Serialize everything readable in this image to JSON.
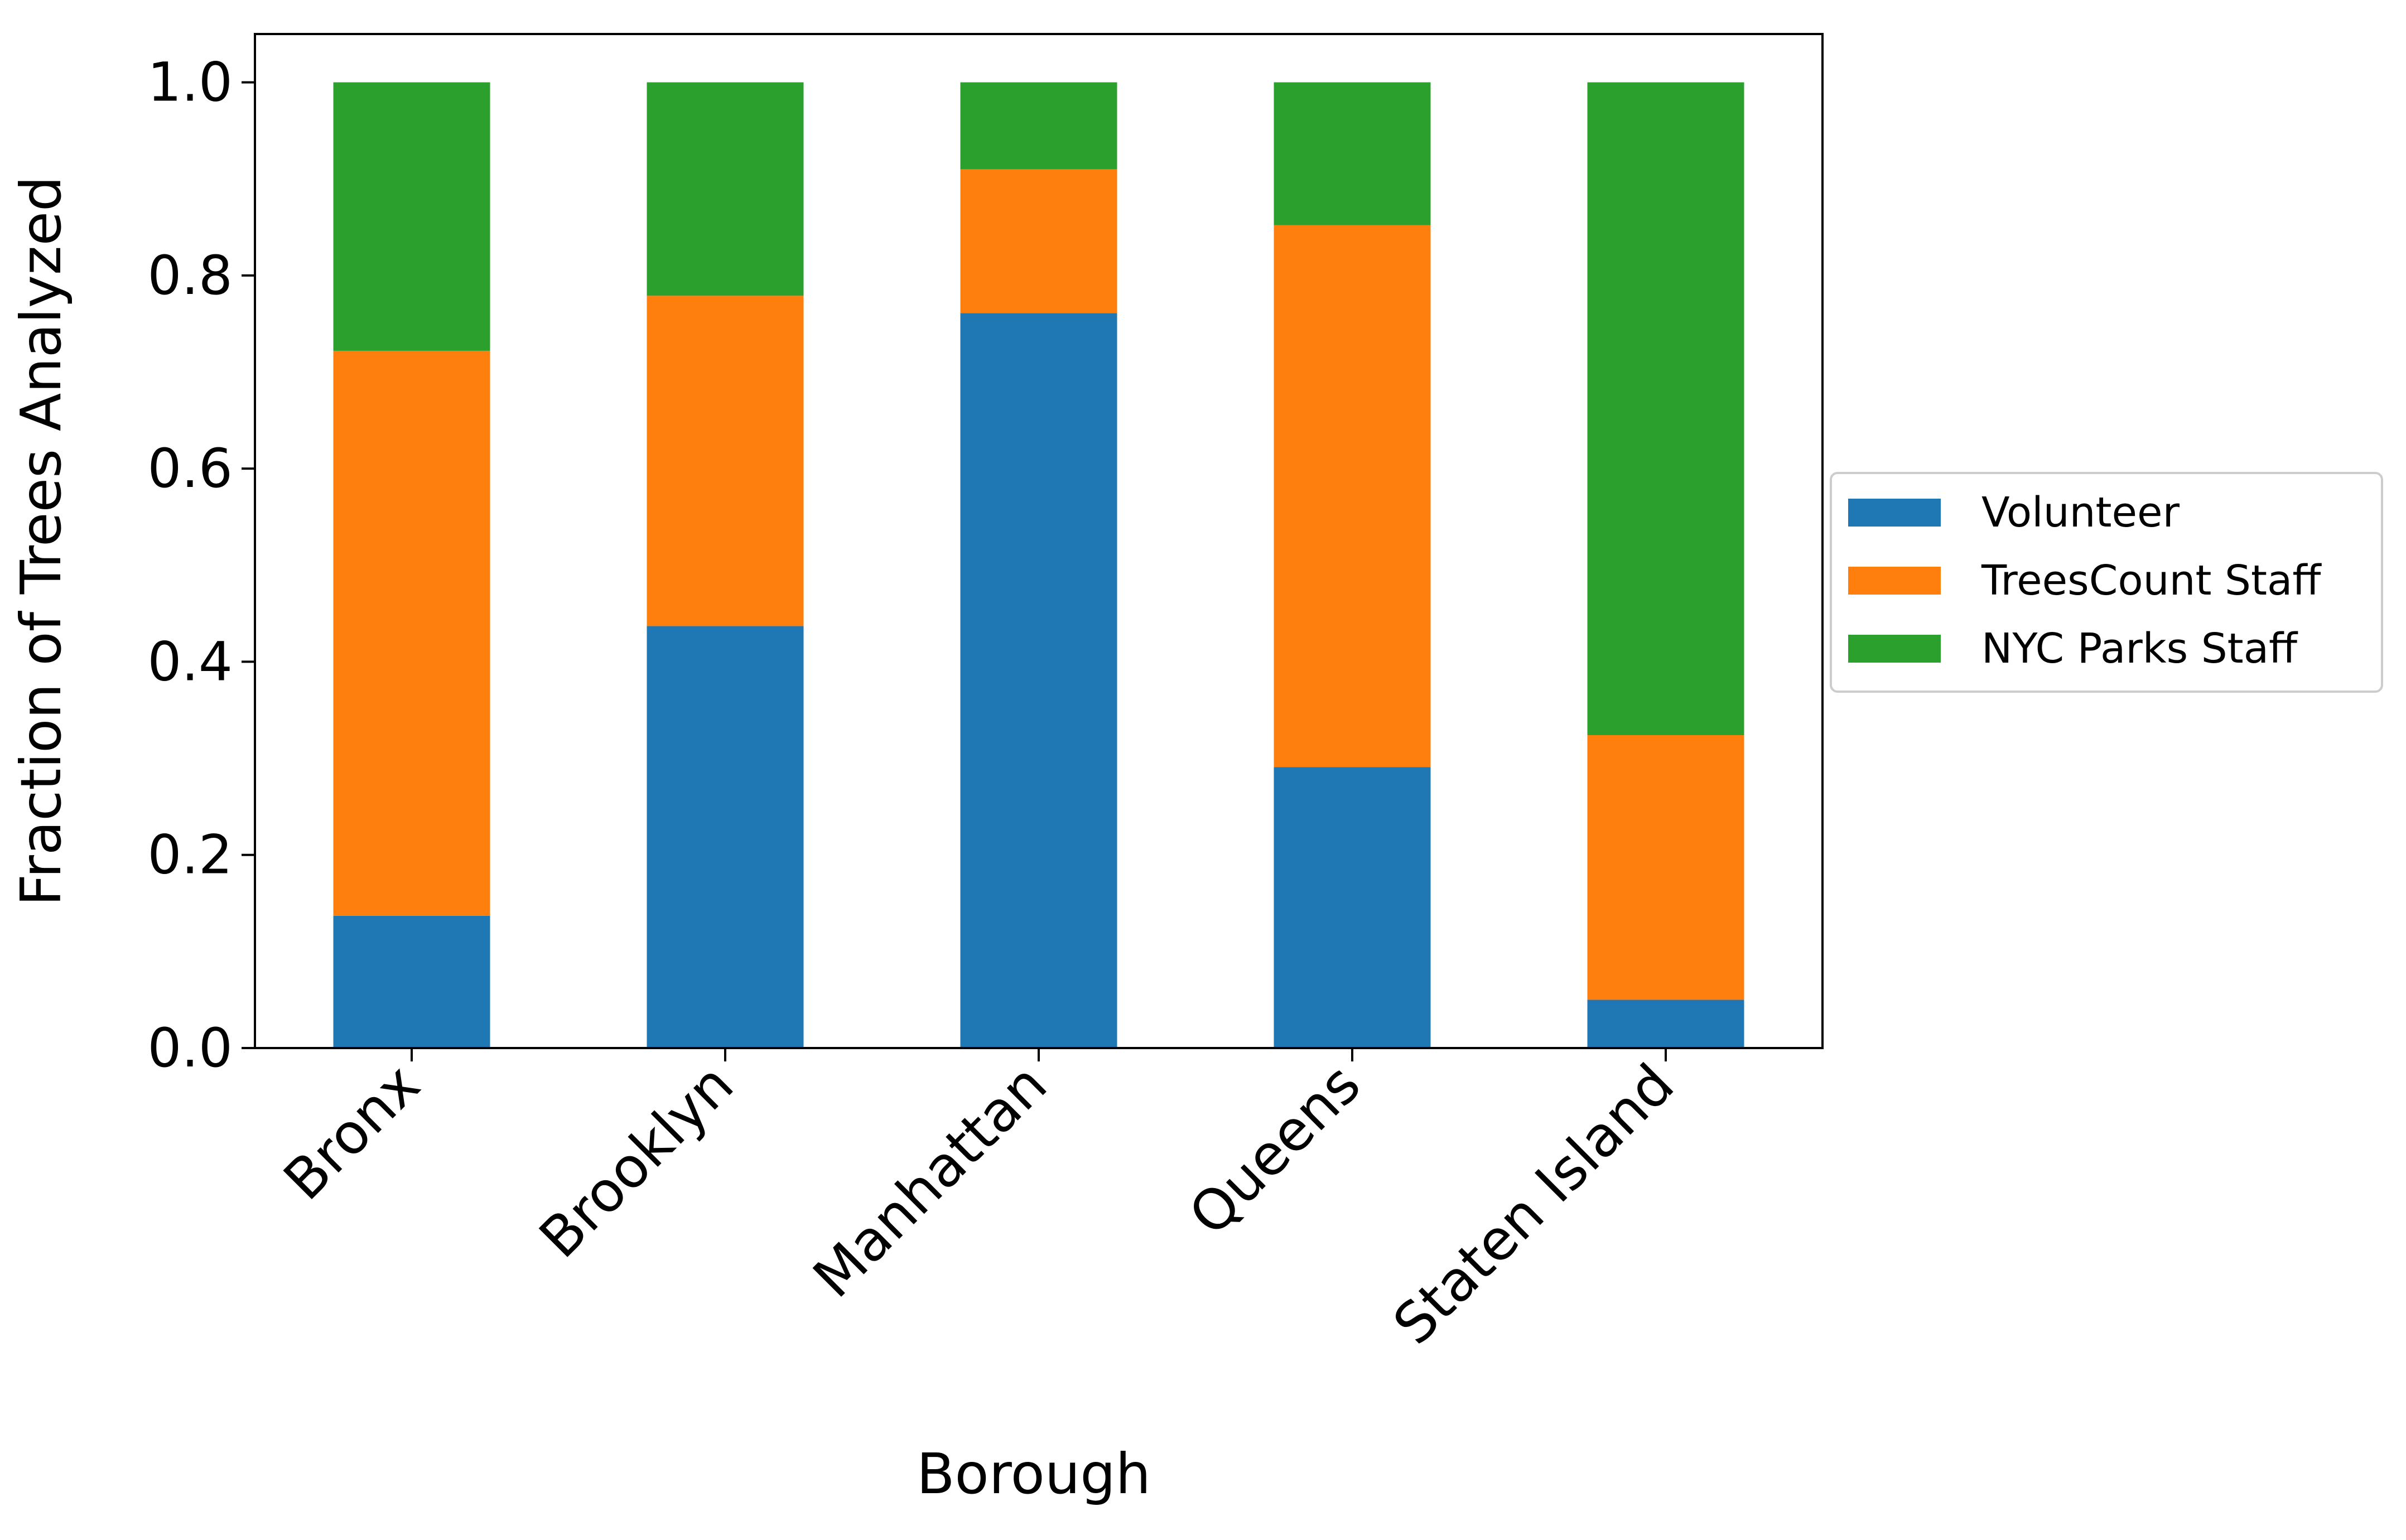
{
  "chart_data": {
    "type": "bar",
    "stacked": true,
    "categories": [
      "Bronx",
      "Brooklyn",
      "Manhattan",
      "Queens",
      "Staten Island"
    ],
    "series": [
      {
        "name": "Volunteer",
        "color": "#1f77b4",
        "values": [
          0.137,
          0.437,
          0.761,
          0.291,
          0.05
        ]
      },
      {
        "name": "TreesCount Staff",
        "color": "#ff7f0e",
        "values": [
          0.585,
          0.342,
          0.149,
          0.561,
          0.274
        ]
      },
      {
        "name": "NYC Parks Staff",
        "color": "#2ca02c",
        "values": [
          0.278,
          0.221,
          0.09,
          0.148,
          0.676
        ]
      }
    ],
    "xlabel": "Borough",
    "ylabel": "Fraction of Trees Analyzed",
    "ylim": [
      0.0,
      1.05
    ],
    "yticks": [
      0.0,
      0.2,
      0.4,
      0.6,
      0.8,
      1.0
    ],
    "ytick_labels": [
      "0.0",
      "0.2",
      "0.4",
      "0.6",
      "0.8",
      "1.0"
    ],
    "grid": false,
    "legend_position": "center-right (outside plot)"
  }
}
